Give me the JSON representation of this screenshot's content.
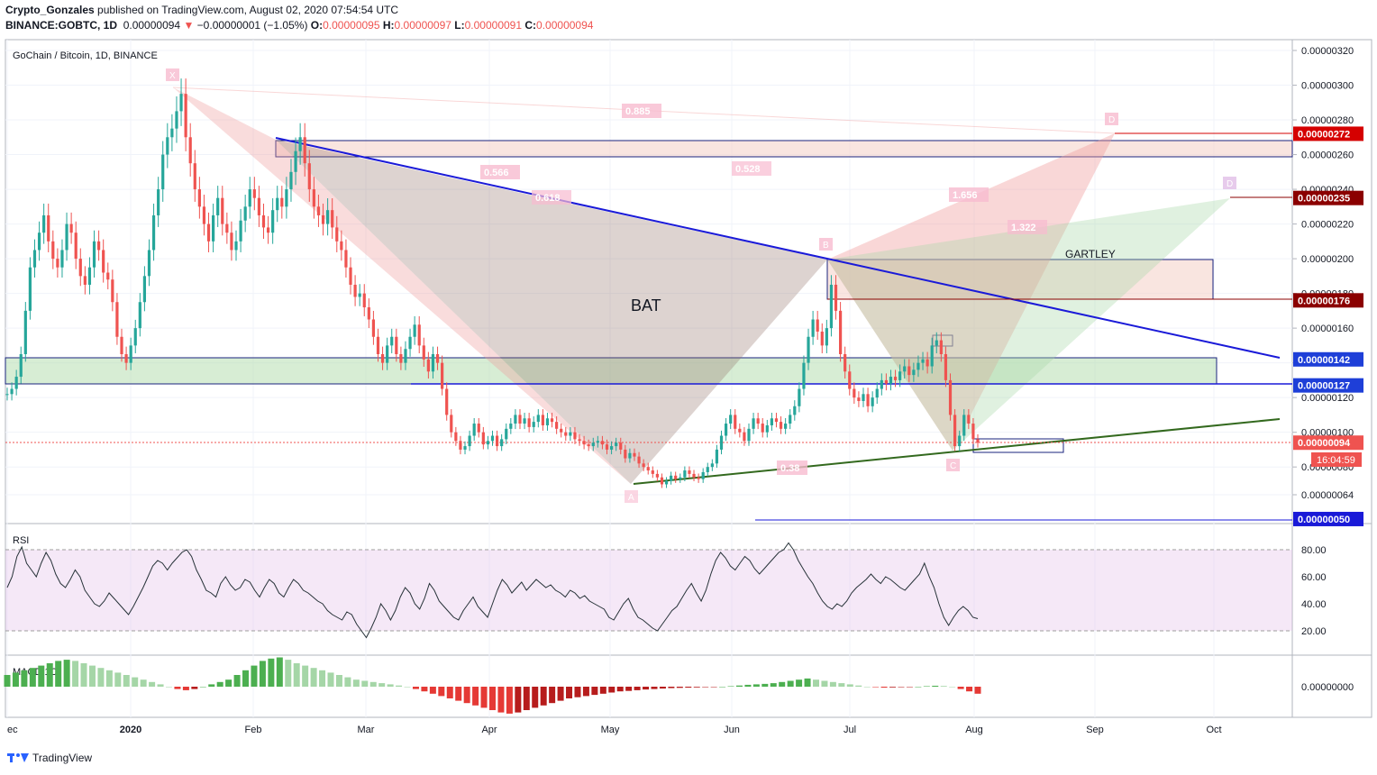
{
  "header": {
    "author": "Crypto_Gonzales",
    "published_text": "published on TradingView.com, August 02, 2020 07:54:54 UTC",
    "symbol": "BINANCE:GOBTC, 1D",
    "last": "0.00000094",
    "arrow": "▼",
    "change": "−0.00000001 (−1.05%)",
    "o_label": "O:",
    "o_value": "0.00000095",
    "h_label": "H:",
    "h_value": "0.00000097",
    "l_label": "L:",
    "l_value": "0.00000091",
    "c_label": "C:",
    "c_value": "0.00000094"
  },
  "chart_data": {
    "type": "candlestick",
    "title": "GoChain / Bitcoin, 1D, BINANCE",
    "x_ticks": [
      "ec",
      "2020",
      "Feb",
      "Mar",
      "Apr",
      "May",
      "Jun",
      "Jul",
      "Aug",
      "Sep",
      "Oct"
    ],
    "y_ticks": [
      "0.00000320",
      "0.00000300",
      "0.00000280",
      "0.00000260",
      "0.00000240",
      "0.00000220",
      "0.00000200",
      "0.00000180",
      "0.00000160",
      "0.00000140",
      "0.00000120",
      "0.00000100",
      "0.00000080",
      "0.00000064"
    ],
    "ylim": [
      4.5e-07,
      3.3e-06
    ],
    "price_tags": [
      {
        "value": "0.00000272",
        "price": 2.72e-06,
        "color": "#d50000"
      },
      {
        "value": "0.00000235",
        "price": 2.35e-06,
        "color": "#8b0000"
      },
      {
        "value": "0.00000176",
        "price": 1.76e-06,
        "color": "#8b0000"
      },
      {
        "value": "0.00000142",
        "price": 1.42e-06,
        "color": "#1e3fd8"
      },
      {
        "value": "0.00000127",
        "price": 1.27e-06,
        "color": "#1e3fd8"
      },
      {
        "value": "0.00000094",
        "price": 9.4e-07,
        "color": "#ef5350"
      },
      {
        "value": "0.00000050",
        "price": 5e-07,
        "color": "#1a1ad8"
      }
    ],
    "countdown": "16:04:59",
    "annotations": {
      "bat": "BAT",
      "gartley": "GARTLEY",
      "points": [
        "X",
        "A",
        "B",
        "C",
        "D"
      ],
      "gartley_point": "D",
      "fib_labels": [
        "0.885",
        "0.566",
        "0.618",
        "0.528",
        "1.656",
        "1.322",
        "0.38"
      ]
    },
    "candle_closes": [
      1.22,
      1.25,
      1.32,
      1.45,
      1.7,
      1.95,
      2.05,
      2.15,
      2.25,
      2.1,
      2.0,
      1.95,
      2.05,
      2.2,
      2.15,
      2.0,
      1.9,
      1.85,
      1.95,
      2.1,
      2.05,
      1.92,
      1.88,
      1.75,
      1.55,
      1.45,
      1.4,
      1.5,
      1.6,
      1.75,
      1.9,
      2.05,
      2.25,
      2.4,
      2.6,
      2.7,
      2.75,
      2.85,
      2.95,
      2.7,
      2.55,
      2.4,
      2.3,
      2.2,
      2.1,
      2.25,
      2.35,
      2.2,
      2.15,
      2.05,
      2.1,
      2.22,
      2.3,
      2.4,
      2.35,
      2.25,
      2.18,
      2.15,
      2.28,
      2.35,
      2.3,
      2.4,
      2.5,
      2.62,
      2.7,
      2.55,
      2.4,
      2.3,
      2.25,
      2.2,
      2.28,
      2.18,
      2.1,
      2.05,
      1.95,
      1.85,
      1.78,
      1.8,
      1.72,
      1.65,
      1.55,
      1.45,
      1.4,
      1.5,
      1.55,
      1.45,
      1.4,
      1.48,
      1.55,
      1.62,
      1.5,
      1.42,
      1.35,
      1.45,
      1.4,
      1.25,
      1.1,
      1.0,
      0.95,
      0.9,
      0.92,
      0.98,
      1.05,
      1.0,
      0.93,
      0.95,
      0.98,
      0.92,
      0.96,
      1.02,
      1.05,
      1.1,
      1.05,
      1.08,
      1.03,
      1.06,
      1.1,
      1.04,
      1.08,
      1.06,
      1.02,
      1.0,
      0.98,
      1.0,
      0.96,
      0.95,
      0.93,
      0.92,
      0.94,
      0.95,
      0.93,
      0.9,
      0.92,
      0.94,
      0.9,
      0.85,
      0.88,
      0.86,
      0.82,
      0.8,
      0.78,
      0.76,
      0.74,
      0.7,
      0.72,
      0.75,
      0.73,
      0.74,
      0.78,
      0.76,
      0.74,
      0.73,
      0.77,
      0.8,
      0.82,
      0.9,
      0.98,
      1.05,
      1.1,
      1.02,
      1.0,
      0.95,
      1.02,
      1.08,
      1.05,
      1.0,
      1.04,
      1.08,
      1.06,
      1.02,
      1.05,
      1.1,
      1.15,
      1.25,
      1.4,
      1.55,
      1.65,
      1.58,
      1.5,
      1.6,
      1.85,
      1.7,
      1.45,
      1.35,
      1.25,
      1.2,
      1.18,
      1.22,
      1.15,
      1.2,
      1.25,
      1.3,
      1.28,
      1.32,
      1.3,
      1.35,
      1.38,
      1.33,
      1.36,
      1.4,
      1.42,
      1.38,
      1.5,
      1.53,
      1.45,
      1.3,
      1.1,
      0.92,
      0.98,
      1.1,
      1.05,
      0.96,
      0.94
    ],
    "rsi": {
      "label": "RSI",
      "y_ticks": [
        "80.00",
        "60.00",
        "40.00",
        "20.00"
      ],
      "ylim": [
        5,
        95
      ],
      "band": [
        20,
        80
      ],
      "values": [
        52,
        60,
        75,
        82,
        70,
        65,
        60,
        70,
        78,
        72,
        62,
        55,
        52,
        58,
        65,
        60,
        50,
        45,
        40,
        38,
        42,
        48,
        44,
        40,
        36,
        32,
        38,
        45,
        52,
        60,
        68,
        72,
        70,
        65,
        70,
        74,
        78,
        80,
        75,
        65,
        58,
        50,
        48,
        45,
        55,
        60,
        54,
        50,
        52,
        58,
        56,
        50,
        45,
        52,
        58,
        55,
        48,
        45,
        52,
        58,
        55,
        50,
        48,
        45,
        42,
        40,
        35,
        32,
        30,
        28,
        34,
        32,
        25,
        20,
        15,
        22,
        30,
        40,
        35,
        28,
        35,
        45,
        52,
        48,
        40,
        36,
        44,
        55,
        50,
        42,
        38,
        34,
        30,
        28,
        35,
        40,
        45,
        38,
        34,
        30,
        40,
        50,
        58,
        54,
        48,
        52,
        56,
        50,
        54,
        58,
        55,
        52,
        54,
        50,
        48,
        45,
        50,
        48,
        44,
        46,
        42,
        40,
        38,
        36,
        30,
        28,
        34,
        40,
        44,
        36,
        30,
        28,
        25,
        22,
        20,
        25,
        30,
        35,
        38,
        44,
        50,
        55,
        48,
        42,
        50,
        62,
        72,
        78,
        74,
        68,
        65,
        70,
        75,
        72,
        66,
        62,
        66,
        70,
        74,
        78,
        80,
        85,
        80,
        72,
        66,
        60,
        55,
        48,
        42,
        38,
        36,
        40,
        38,
        42,
        48,
        52,
        55,
        58,
        62,
        58,
        55,
        60,
        58,
        55,
        52,
        50,
        54,
        58,
        62,
        70,
        60,
        52,
        40,
        30,
        24,
        30,
        35,
        38,
        35,
        30,
        29
      ]
    },
    "macd": {
      "label": "MACD 1C",
      "y_ticks": [
        "0.00000000"
      ],
      "values": [
        0.5,
        0.6,
        0.7,
        0.8,
        0.9,
        1.0,
        1.1,
        1.15,
        1.1,
        1.0,
        0.9,
        0.8,
        0.7,
        0.6,
        0.5,
        0.4,
        0.3,
        0.2,
        0.1,
        0.0,
        -0.1,
        -0.15,
        -0.1,
        0.0,
        0.1,
        0.2,
        0.3,
        0.5,
        0.7,
        0.9,
        1.1,
        1.2,
        1.25,
        1.15,
        1.0,
        0.9,
        0.8,
        0.7,
        0.6,
        0.5,
        0.4,
        0.3,
        0.25,
        0.2,
        0.15,
        0.1,
        0.05,
        0.0,
        -0.1,
        -0.2,
        -0.3,
        -0.4,
        -0.5,
        -0.6,
        -0.7,
        -0.8,
        -0.9,
        -1.0,
        -1.1,
        -1.15,
        -1.1,
        -1.0,
        -0.9,
        -0.8,
        -0.7,
        -0.6,
        -0.5,
        -0.45,
        -0.4,
        -0.35,
        -0.3,
        -0.25,
        -0.2,
        -0.18,
        -0.15,
        -0.12,
        -0.1,
        -0.08,
        -0.06,
        -0.05,
        -0.04,
        -0.03,
        -0.02,
        -0.01,
        0.0,
        0.02,
        0.05,
        0.08,
        0.1,
        0.12,
        0.15,
        0.2,
        0.25,
        0.3,
        0.35,
        0.3,
        0.25,
        0.2,
        0.15,
        0.1,
        0.05,
        0.0,
        -0.02,
        -0.04,
        -0.03,
        -0.02,
        -0.01,
        0.0,
        0.02,
        0.04,
        0.03,
        0.0,
        -0.1,
        -0.2,
        -0.3
      ]
    }
  },
  "footer": {
    "brand": "TradingView"
  }
}
